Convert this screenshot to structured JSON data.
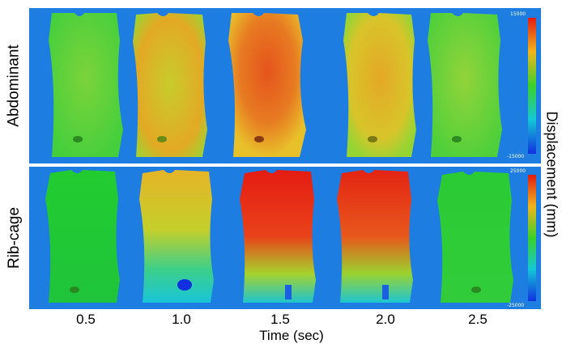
{
  "rows": [
    {
      "label": "Abdominant",
      "colorbar": {
        "max": "15000",
        "min": "-15000"
      }
    },
    {
      "label": "Rib-cage",
      "colorbar": {
        "max": "25000",
        "min": "-25000"
      }
    }
  ],
  "x_axis": {
    "title": "Time (sec)",
    "ticks": [
      "0.5",
      "1.0",
      "1.5",
      "2.0",
      "2.5"
    ]
  },
  "colorbar_title": "Displacement (mm)",
  "colors": {
    "background": "#1d7de0",
    "low": "#1030e0",
    "mid": "#3ad12a",
    "high": "#e31a10"
  }
}
